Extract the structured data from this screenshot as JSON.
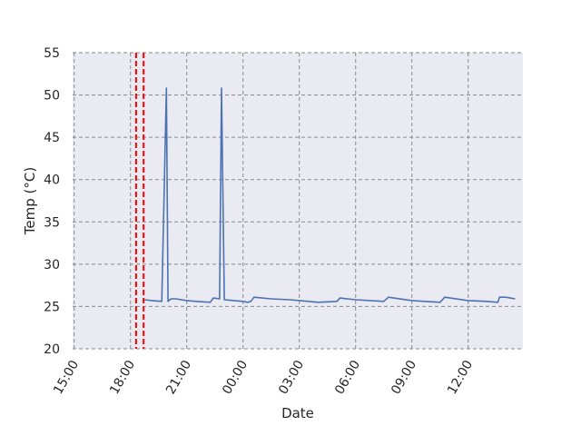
{
  "chart_data": {
    "type": "line",
    "title": "",
    "xlabel": "Date",
    "ylabel": "Temp (°C)",
    "ylim": [
      20,
      55
    ],
    "yticks": [
      20,
      25,
      30,
      35,
      40,
      45,
      50,
      55
    ],
    "xlim": [
      "14:55",
      "14:55+1d"
    ],
    "xticks": [
      {
        "label": "15:00",
        "time": "15:00",
        "day": 0
      },
      {
        "label": "18:00",
        "time": "18:00",
        "day": 0
      },
      {
        "label": "21:00",
        "time": "21:00",
        "day": 0
      },
      {
        "label": "00:00",
        "time": "00:00",
        "day": 1
      },
      {
        "label": "03:00",
        "time": "03:00",
        "day": 1
      },
      {
        "label": "06:00",
        "time": "06:00",
        "day": 1
      },
      {
        "label": "09:00",
        "time": "09:00",
        "day": 1
      },
      {
        "label": "12:00",
        "time": "12:00",
        "day": 1
      }
    ],
    "grid": true,
    "background": "#eaeaf2",
    "line_color": "#4c72b0",
    "marker_color": "#ff0000",
    "vertical_markers": [
      {
        "time": "18:18",
        "day": 0
      },
      {
        "time": "18:42",
        "day": 0
      }
    ],
    "series": [
      {
        "name": "",
        "points": [
          {
            "time": "18:45",
            "day": 0,
            "value": 25.8
          },
          {
            "time": "19:10",
            "day": 0,
            "value": 25.7
          },
          {
            "time": "19:40",
            "day": 0,
            "value": 25.6
          },
          {
            "time": "19:55",
            "day": 0,
            "value": 50.8
          },
          {
            "time": "20:00",
            "day": 0,
            "value": 25.6
          },
          {
            "time": "20:10",
            "day": 0,
            "value": 25.9
          },
          {
            "time": "20:25",
            "day": 0,
            "value": 25.9
          },
          {
            "time": "21:00",
            "day": 0,
            "value": 25.7
          },
          {
            "time": "21:30",
            "day": 0,
            "value": 25.6
          },
          {
            "time": "22:15",
            "day": 0,
            "value": 25.5
          },
          {
            "time": "22:25",
            "day": 0,
            "value": 26.0
          },
          {
            "time": "22:45",
            "day": 0,
            "value": 25.9
          },
          {
            "time": "22:51",
            "day": 0,
            "value": 50.8
          },
          {
            "time": "23:00",
            "day": 0,
            "value": 25.8
          },
          {
            "time": "23:30",
            "day": 0,
            "value": 25.7
          },
          {
            "time": "00:00",
            "day": 1,
            "value": 25.6
          },
          {
            "time": "00:15",
            "day": 1,
            "value": 25.5
          },
          {
            "time": "00:25",
            "day": 1,
            "value": 25.6
          },
          {
            "time": "00:35",
            "day": 1,
            "value": 26.1
          },
          {
            "time": "01:30",
            "day": 1,
            "value": 25.9
          },
          {
            "time": "02:30",
            "day": 1,
            "value": 25.8
          },
          {
            "time": "03:30",
            "day": 1,
            "value": 25.6
          },
          {
            "time": "04:00",
            "day": 1,
            "value": 25.5
          },
          {
            "time": "05:00",
            "day": 1,
            "value": 25.6
          },
          {
            "time": "05:10",
            "day": 1,
            "value": 26.0
          },
          {
            "time": "06:00",
            "day": 1,
            "value": 25.8
          },
          {
            "time": "07:30",
            "day": 1,
            "value": 25.6
          },
          {
            "time": "07:45",
            "day": 1,
            "value": 26.1
          },
          {
            "time": "09:00",
            "day": 1,
            "value": 25.7
          },
          {
            "time": "10:30",
            "day": 1,
            "value": 25.5
          },
          {
            "time": "10:45",
            "day": 1,
            "value": 26.1
          },
          {
            "time": "12:00",
            "day": 1,
            "value": 25.7
          },
          {
            "time": "13:00",
            "day": 1,
            "value": 25.6
          },
          {
            "time": "13:35",
            "day": 1,
            "value": 25.5
          },
          {
            "time": "13:40",
            "day": 1,
            "value": 26.1
          },
          {
            "time": "14:00",
            "day": 1,
            "value": 26.1
          },
          {
            "time": "14:30",
            "day": 1,
            "value": 25.9
          }
        ]
      }
    ]
  }
}
